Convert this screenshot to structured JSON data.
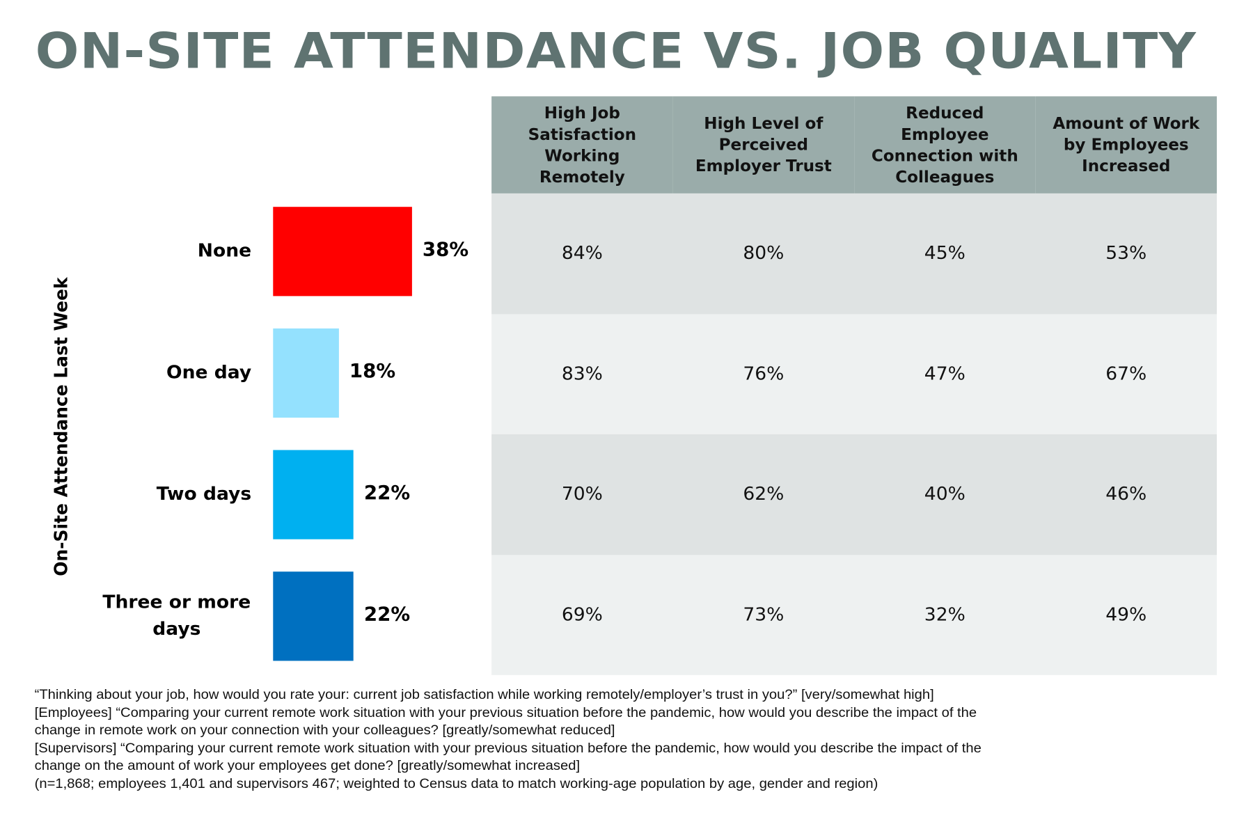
{
  "chart_data": {
    "type": "bar",
    "title": "ON-SITE ATTENDANCE VS. JOB QUALITY",
    "ylabel": "On-Site Attendance Last Week",
    "orientation": "horizontal",
    "categories": [
      "None",
      "One day",
      "Two days",
      "Three or more days"
    ],
    "values": [
      38,
      18,
      22,
      22
    ],
    "value_labels": [
      "38%",
      "18%",
      "22%",
      "22%"
    ],
    "bar_colors": [
      "#ff0000",
      "#94e1fe",
      "#00b0f0",
      "#0070c0"
    ],
    "table": {
      "columns": [
        "High Job Satisfaction Working Remotely",
        "High Level of Perceived Employer Trust",
        "Reduced Employee Connection with Colleagues",
        "Amount of Work by Employees Increased"
      ],
      "rows": [
        [
          "84%",
          "80%",
          "45%",
          "53%"
        ],
        [
          "83%",
          "76%",
          "47%",
          "67%"
        ],
        [
          "70%",
          "62%",
          "40%",
          "46%"
        ],
        [
          "69%",
          "73%",
          "32%",
          "49%"
        ]
      ],
      "header_color": "#9aacaa",
      "row_colors": [
        "#dfe3e3",
        "#eef1f1"
      ]
    },
    "notes": [
      "“Thinking about your job, how would you rate your: current job satisfaction while working remotely/employer’s trust in you?” [very/somewhat high]",
      "[Employees] “Comparing your current remote work situation with your previous situation before the pandemic, how would you describe the impact of the",
      "change in remote work on your connection with your colleagues? [greatly/somewhat reduced]",
      "[Supervisors] “Comparing your current remote work situation with your previous situation before the pandemic, how would you describe the impact of the",
      "change on the amount of work your employees get done? [greatly/somewhat increased]",
      "(n=1,868; employees 1,401 and supervisors 467; weighted to Census data to match working-age population by age, gender and region)"
    ]
  }
}
